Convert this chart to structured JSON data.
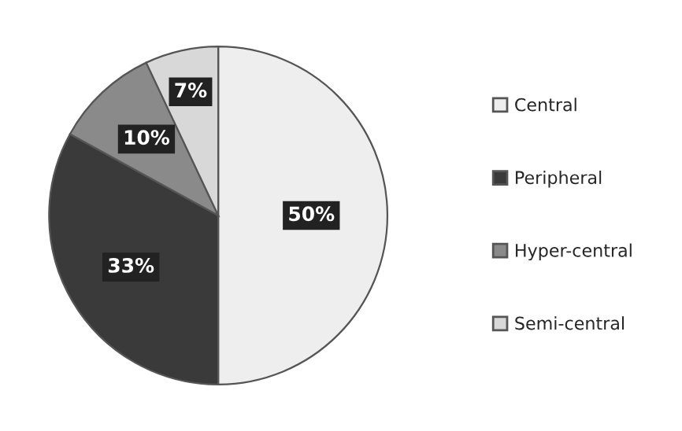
{
  "chart_data": {
    "type": "pie",
    "categories": [
      "Central",
      "Peripheral",
      "Hyper-central",
      "Semi-central"
    ],
    "values": [
      50,
      33,
      10,
      7
    ],
    "colors": [
      "#eeeeee",
      "#3a3a3a",
      "#8a8a8a",
      "#d8d8d8"
    ],
    "value_labels": [
      "50%",
      "33%",
      "10%",
      "7%"
    ],
    "legend": "right"
  }
}
